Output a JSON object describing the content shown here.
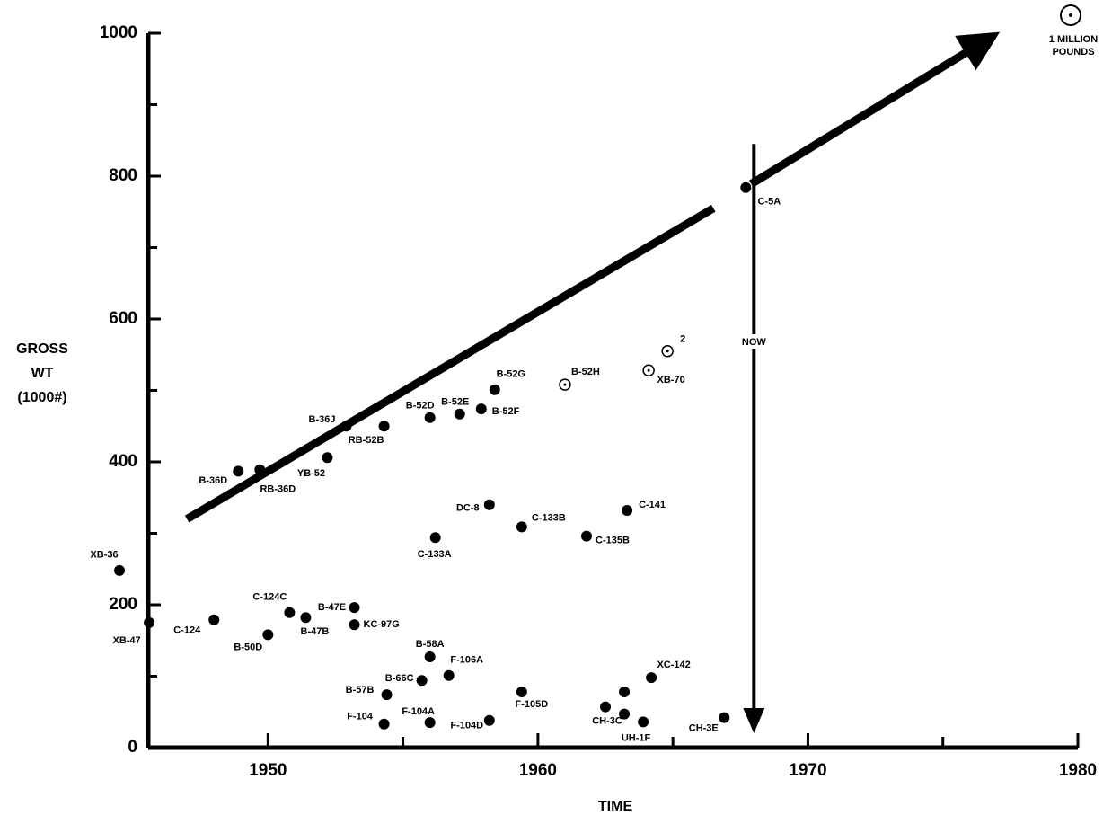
{
  "chart_data": {
    "type": "scatter",
    "x_label": "TIME",
    "y_label_lines": [
      "GROSS",
      "WT",
      "(1000#)"
    ],
    "xlim": [
      1944,
      1980
    ],
    "ylim": [
      0,
      1000
    ],
    "xticks": [
      1950,
      1960,
      1970,
      1980
    ],
    "minor_xticks": [
      1955,
      1965,
      1975
    ],
    "yticks": [
      0,
      200,
      400,
      600,
      800,
      1000
    ],
    "minor_yticks": [
      100,
      300,
      500,
      700,
      900
    ],
    "color": "#000000",
    "points": [
      {
        "label": "XB-36",
        "x": 1944.5,
        "y": 248
      },
      {
        "label": "XB-47",
        "x": 1945.6,
        "y": 175
      },
      {
        "label": "C-124",
        "x": 1948.0,
        "y": 179
      },
      {
        "label": "B-50D",
        "x": 1950.0,
        "y": 158
      },
      {
        "label": "C-124C",
        "x": 1950.8,
        "y": 189
      },
      {
        "label": "B-47B",
        "x": 1951.4,
        "y": 182
      },
      {
        "label": "B-47E",
        "x": 1953.2,
        "y": 196
      },
      {
        "label": "KC-97G",
        "x": 1953.2,
        "y": 172
      },
      {
        "label": "B-36D",
        "x": 1948.9,
        "y": 387
      },
      {
        "label": "RB-36D",
        "x": 1949.7,
        "y": 389
      },
      {
        "label": "YB-52",
        "x": 1952.2,
        "y": 406
      },
      {
        "label": "B-36J",
        "x": 1952.9,
        "y": 450
      },
      {
        "label": "RB-52B",
        "x": 1954.3,
        "y": 450
      },
      {
        "label": "B-52D",
        "x": 1956.0,
        "y": 462
      },
      {
        "label": "B-52E",
        "x": 1957.1,
        "y": 467
      },
      {
        "label": "B-52F",
        "x": 1957.9,
        "y": 474
      },
      {
        "label": "B-52G",
        "x": 1958.4,
        "y": 501
      },
      {
        "label": "B-52H",
        "x": 1961.0,
        "y": 508,
        "marker": "hollow"
      },
      {
        "label": "2",
        "x": 1964.8,
        "y": 555,
        "marker": "hollow"
      },
      {
        "label": "XB-70",
        "x": 1964.1,
        "y": 528,
        "marker": "hollow"
      },
      {
        "label": "DC-8",
        "x": 1958.2,
        "y": 340
      },
      {
        "label": "C-133A",
        "x": 1956.2,
        "y": 294
      },
      {
        "label": "C-133B",
        "x": 1959.4,
        "y": 309
      },
      {
        "label": "C-135B",
        "x": 1961.8,
        "y": 296
      },
      {
        "label": "C-141",
        "x": 1963.3,
        "y": 332
      },
      {
        "label": "C-5A",
        "x": 1967.7,
        "y": 784
      },
      {
        "label": "B-58A",
        "x": 1956.0,
        "y": 127
      },
      {
        "label": "F-106A",
        "x": 1956.7,
        "y": 101
      },
      {
        "label": "B-66C",
        "x": 1955.7,
        "y": 94
      },
      {
        "label": "B-57B",
        "x": 1954.4,
        "y": 74
      },
      {
        "label": "F-104",
        "x": 1954.3,
        "y": 33
      },
      {
        "label": "F-104A",
        "x": 1956.0,
        "y": 35
      },
      {
        "label": "F-104D",
        "x": 1958.2,
        "y": 38
      },
      {
        "label": "F-105D",
        "x": 1959.4,
        "y": 78
      },
      {
        "label": "CH-3C",
        "x": 1962.5,
        "y": 57
      },
      {
        "label": "UH-1F",
        "x": 1963.2,
        "y": 47
      },
      {
        "label": null,
        "x": 1963.2,
        "y": 78
      },
      {
        "label": null,
        "x": 1963.9,
        "y": 36
      },
      {
        "label": "XC-142",
        "x": 1964.2,
        "y": 98
      },
      {
        "label": "CH-3E",
        "x": 1966.9,
        "y": 42
      }
    ],
    "trend": {
      "x": [
        1947.0,
        1966.5,
        null,
        1967.9,
        1976.6
      ],
      "y": [
        320,
        755,
        null,
        789,
        990
      ]
    },
    "now_marker": {
      "label": "NOW",
      "x": 1968
    },
    "note_lines": [
      "1 MILLION",
      "POUNDS"
    ]
  }
}
